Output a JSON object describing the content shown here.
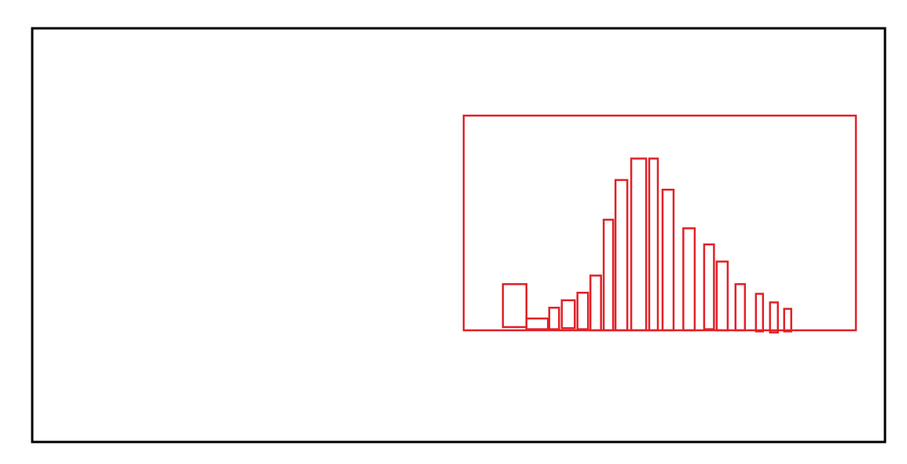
{
  "chart_data": {
    "type": "bar",
    "title": "",
    "xlabel": "",
    "ylabel": "",
    "grid": false,
    "legend": "none",
    "x_range": [
      0,
      100
    ],
    "ylim": [
      0,
      100
    ],
    "bars": [
      {
        "x0": 10.0,
        "x1": 16.0,
        "y0": 1.5,
        "y1": 21.5
      },
      {
        "x0": 16.0,
        "x1": 21.5,
        "y0": 0.5,
        "y1": 5.5
      },
      {
        "x0": 21.8,
        "x1": 24.3,
        "y0": 0.5,
        "y1": 10.5
      },
      {
        "x0": 25.0,
        "x1": 28.3,
        "y0": 1.0,
        "y1": 14.0
      },
      {
        "x0": 29.0,
        "x1": 31.7,
        "y0": 0.5,
        "y1": 17.5
      },
      {
        "x0": 32.3,
        "x1": 35.0,
        "y0": 0.0,
        "y1": 25.5
      },
      {
        "x0": 35.7,
        "x1": 38.1,
        "y0": 0.0,
        "y1": 51.5
      },
      {
        "x0": 38.7,
        "x1": 41.7,
        "y0": 0.0,
        "y1": 70.0
      },
      {
        "x0": 42.7,
        "x1": 46.5,
        "y0": 0.0,
        "y1": 80.0
      },
      {
        "x0": 47.3,
        "x1": 49.5,
        "y0": 0.0,
        "y1": 80.0
      },
      {
        "x0": 50.7,
        "x1": 53.5,
        "y0": 0.0,
        "y1": 65.5
      },
      {
        "x0": 56.0,
        "x1": 58.9,
        "y0": 0.0,
        "y1": 47.5
      },
      {
        "x0": 61.3,
        "x1": 63.8,
        "y0": 0.5,
        "y1": 40.0
      },
      {
        "x0": 64.5,
        "x1": 67.3,
        "y0": 0.0,
        "y1": 32.0
      },
      {
        "x0": 69.3,
        "x1": 71.7,
        "y0": 0.0,
        "y1": 21.5
      },
      {
        "x0": 74.5,
        "x1": 76.3,
        "y0": -0.5,
        "y1": 17.0
      },
      {
        "x0": 78.1,
        "x1": 80.1,
        "y0": -1.0,
        "y1": 13.0
      },
      {
        "x0": 81.7,
        "x1": 83.5,
        "y0": -0.5,
        "y1": 10.0
      }
    ]
  },
  "colors": {
    "frame": "#000000",
    "series": "#e02128",
    "background": "#ffffff"
  }
}
